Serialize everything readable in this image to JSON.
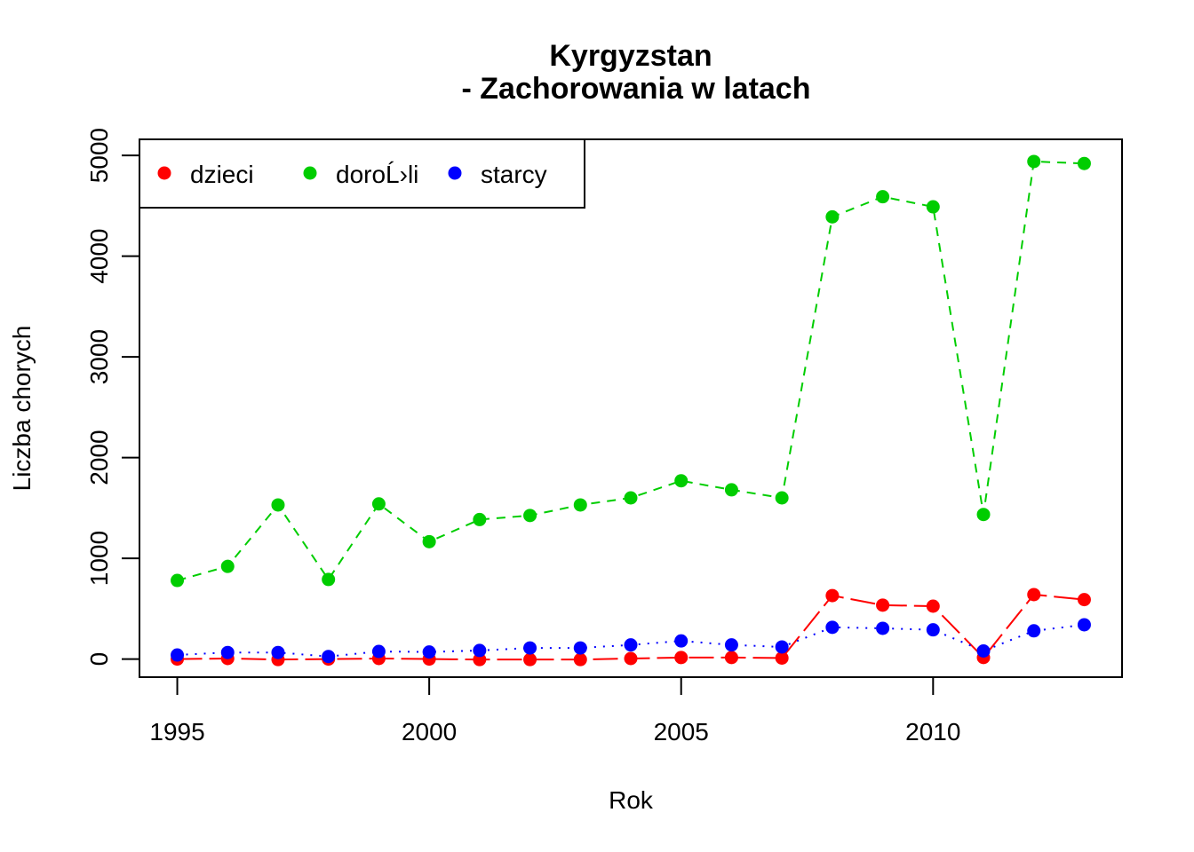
{
  "chart_data": {
    "type": "line",
    "title": "Kyrgyzstan",
    "subtitle": "- Zachorowania w latach",
    "xlabel": "Rok",
    "ylabel": "Liczba chorych",
    "xlim": [
      1994.25,
      2013.75
    ],
    "ylim": [
      -180,
      5160
    ],
    "x_ticks": [
      1995,
      2000,
      2005,
      2010
    ],
    "y_ticks": [
      0,
      1000,
      2000,
      3000,
      4000,
      5000
    ],
    "x_tick_labels": [
      "1995",
      "2000",
      "2005",
      "2010"
    ],
    "y_tick_labels": [
      "0",
      "1000",
      "2000",
      "3000",
      "4000",
      "5000"
    ],
    "grid": false,
    "legend_position": "top-left",
    "x": [
      1995,
      1996,
      1997,
      1998,
      1999,
      2000,
      2001,
      2002,
      2003,
      2004,
      2005,
      2006,
      2007,
      2008,
      2009,
      2010,
      2011,
      2012,
      2013
    ],
    "series": [
      {
        "name": "dzieci",
        "color": "#ff0000",
        "line_style": "longdash",
        "values": [
          0,
          5,
          -5,
          0,
          5,
          0,
          -5,
          -5,
          -5,
          5,
          15,
          15,
          10,
          630,
          535,
          525,
          15,
          640,
          590
        ]
      },
      {
        "name": "doroĹ›li",
        "color": "#00cd00",
        "line_style": "dashed",
        "values": [
          780,
          920,
          1530,
          790,
          1540,
          1165,
          1385,
          1425,
          1530,
          1600,
          1770,
          1680,
          1600,
          4390,
          4590,
          4490,
          1435,
          4940,
          4920
        ]
      },
      {
        "name": "starcy",
        "color": "#0000ff",
        "line_style": "dotted",
        "values": [
          40,
          65,
          65,
          25,
          75,
          70,
          85,
          110,
          110,
          140,
          180,
          140,
          120,
          315,
          305,
          290,
          80,
          280,
          340
        ]
      }
    ]
  }
}
